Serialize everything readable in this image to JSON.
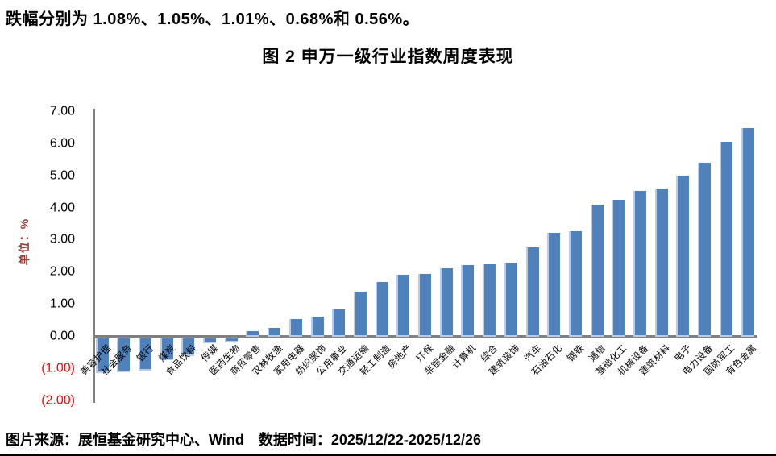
{
  "page": {
    "top_text": "跌幅分别为 1.08%、1.05%、1.01%、0.68%和 0.56%。",
    "source_text": "图片来源：展恒基金研究中心、Wind　数据时间：2025/12/22-2025/12/26"
  },
  "chart_data": {
    "type": "bar",
    "title": "图 2 申万一级行业指数周度表现",
    "ylabel": "单位：%",
    "xlabel": "",
    "ylim": [
      -2,
      7
    ],
    "ytick_step": 1,
    "yticks": [
      "7.00",
      "6.00",
      "5.00",
      "4.00",
      "3.00",
      "2.00",
      "1.00",
      "0.00",
      "(1.00)",
      "(2.00)"
    ],
    "ytick_values": [
      7,
      6,
      5,
      4,
      3,
      2,
      1,
      0,
      -1,
      -2
    ],
    "grid": false,
    "legend": "none",
    "bar_color": "#4f81bd",
    "bar_edge_color": "#b9cce3",
    "axis_color": "#808080",
    "negative_tick_color": "#ff0000",
    "ylabel_color": "#953735",
    "categories": [
      "美容护理",
      "社会服务",
      "银行",
      "煤炭",
      "食品饮料",
      "传媒",
      "医药生物",
      "商贸零售",
      "农林牧渔",
      "家用电器",
      "纺织服饰",
      "公用事业",
      "交通运输",
      "轻工制造",
      "房地产",
      "环保",
      "非银金融",
      "计算机",
      "综合",
      "建筑装饰",
      "汽车",
      "石油石化",
      "钢铁",
      "通信",
      "基础化工",
      "机械设备",
      "建筑材料",
      "电子",
      "电力设备",
      "国防军工",
      "有色金属"
    ],
    "values": [
      -1.08,
      -1.05,
      -1.01,
      -0.68,
      -0.56,
      -0.15,
      -0.12,
      0.18,
      0.28,
      0.56,
      0.63,
      0.85,
      1.4,
      1.71,
      1.94,
      1.96,
      2.13,
      2.24,
      2.26,
      2.31,
      2.79,
      3.23,
      3.29,
      4.11,
      4.27,
      4.55,
      4.62,
      5.02,
      5.43,
      6.08,
      6.51
    ]
  }
}
